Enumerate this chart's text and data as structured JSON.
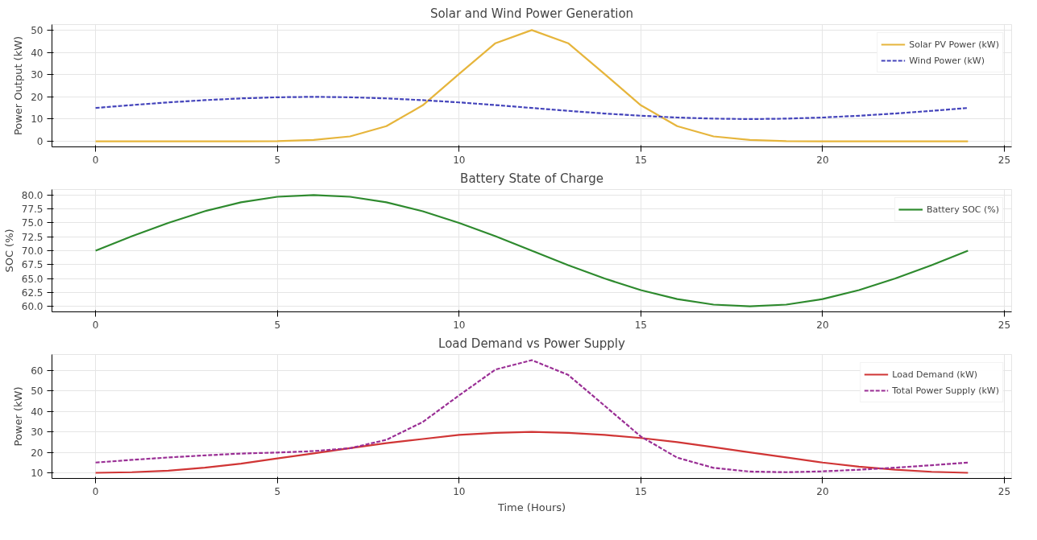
{
  "chart_data": [
    {
      "type": "line",
      "title": "Solar and Wind Power Generation",
      "ylabel": "Power Output (kW)",
      "x": [
        0,
        1,
        2,
        3,
        4,
        5,
        6,
        7,
        8,
        9,
        10,
        11,
        12,
        13,
        14,
        15,
        16,
        17,
        18,
        19,
        20,
        21,
        22,
        23,
        24
      ],
      "xlim": [
        -1.2,
        25.2
      ],
      "xticks": [
        0,
        5,
        10,
        15,
        20,
        25
      ],
      "ylim": [
        -2.5,
        52.5
      ],
      "yticks": [
        0,
        10,
        20,
        30,
        40,
        50
      ],
      "grid": true,
      "legend": "top right",
      "marker": "none",
      "series": [
        {
          "name": "Solar PV Power (kW)",
          "color": "#e6b53c",
          "line_style": "solid",
          "values": [
            0,
            0,
            0,
            0,
            0,
            0.1,
            0.6,
            2.2,
            6.8,
            16.2,
            30.3,
            44.1,
            50,
            44.1,
            30.3,
            16.2,
            6.8,
            2.2,
            0.6,
            0.1,
            0,
            0,
            0,
            0,
            0
          ]
        },
        {
          "name": "Wind Power (kW)",
          "color": "#4444bb",
          "line_style": "dashed",
          "values": [
            15,
            16.3,
            17.5,
            18.5,
            19.3,
            19.8,
            20,
            19.8,
            19.3,
            18.5,
            17.5,
            16.3,
            15,
            13.7,
            12.5,
            11.5,
            10.7,
            10.2,
            10,
            10.2,
            10.7,
            11.5,
            12.5,
            13.7,
            15
          ]
        }
      ]
    },
    {
      "type": "line",
      "title": "Battery State of Charge",
      "ylabel": "SOC (%)",
      "x": [
        0,
        1,
        2,
        3,
        4,
        5,
        6,
        7,
        8,
        9,
        10,
        11,
        12,
        13,
        14,
        15,
        16,
        17,
        18,
        19,
        20,
        21,
        22,
        23,
        24
      ],
      "xlim": [
        -1.2,
        25.2
      ],
      "xticks": [
        0,
        5,
        10,
        15,
        20,
        25
      ],
      "ylim": [
        59,
        81
      ],
      "yticks": [
        {
          "value": 60,
          "label": "60.0"
        },
        {
          "value": 62.5,
          "label": "62.5"
        },
        {
          "value": 65,
          "label": "65.0"
        },
        {
          "value": 67.5,
          "label": "67.5"
        },
        {
          "value": 70,
          "label": "70.0"
        },
        {
          "value": 72.5,
          "label": "72.5"
        },
        {
          "value": 75,
          "label": "75.0"
        },
        {
          "value": 77.5,
          "label": "77.5"
        },
        {
          "value": 80,
          "label": "80.0"
        }
      ],
      "grid": true,
      "legend": "top right",
      "marker": "none",
      "series": [
        {
          "name": "Battery SOC (%)",
          "color": "#2e8a2e",
          "line_style": "solid",
          "values": [
            70,
            72.6,
            75,
            77.1,
            78.7,
            79.7,
            80,
            79.7,
            78.7,
            77.1,
            75,
            72.6,
            70,
            67.4,
            65,
            62.9,
            61.3,
            60.3,
            60,
            60.3,
            61.3,
            62.9,
            65,
            67.4,
            70
          ]
        }
      ]
    },
    {
      "type": "line",
      "title": "Load Demand vs Power Supply",
      "xlabel": "Time (Hours)",
      "ylabel": "Power (kW)",
      "x": [
        0,
        1,
        2,
        3,
        4,
        5,
        6,
        7,
        8,
        9,
        10,
        11,
        12,
        13,
        14,
        15,
        16,
        17,
        18,
        19,
        20,
        21,
        22,
        23,
        24
      ],
      "xlim": [
        -1.2,
        25.2
      ],
      "xticks": [
        0,
        5,
        10,
        15,
        20,
        25
      ],
      "ylim": [
        7.25,
        67.75
      ],
      "yticks": [
        10,
        20,
        30,
        40,
        50,
        60
      ],
      "grid": true,
      "legend": "top right",
      "marker": "none",
      "series": [
        {
          "name": "Load Demand (kW)",
          "color": "#d03535",
          "line_style": "solid",
          "values": [
            10,
            10.3,
            11,
            12.5,
            14.5,
            17,
            19.5,
            22,
            24.5,
            26.5,
            28.5,
            29.5,
            30,
            29.5,
            28.5,
            27,
            25,
            22.5,
            20,
            17.5,
            15,
            13,
            11.5,
            10.5,
            10
          ]
        },
        {
          "name": "Total Power Supply (kW)",
          "color": "#9a2f95",
          "line_style": "dashed",
          "values": [
            15,
            16.3,
            17.5,
            18.5,
            19.4,
            19.9,
            20.6,
            22,
            26.1,
            34.8,
            47.8,
            60.4,
            65,
            57.8,
            42.8,
            27.7,
            17.4,
            12.4,
            10.6,
            10.3,
            10.7,
            11.5,
            12.5,
            13.7,
            15
          ]
        }
      ]
    }
  ]
}
